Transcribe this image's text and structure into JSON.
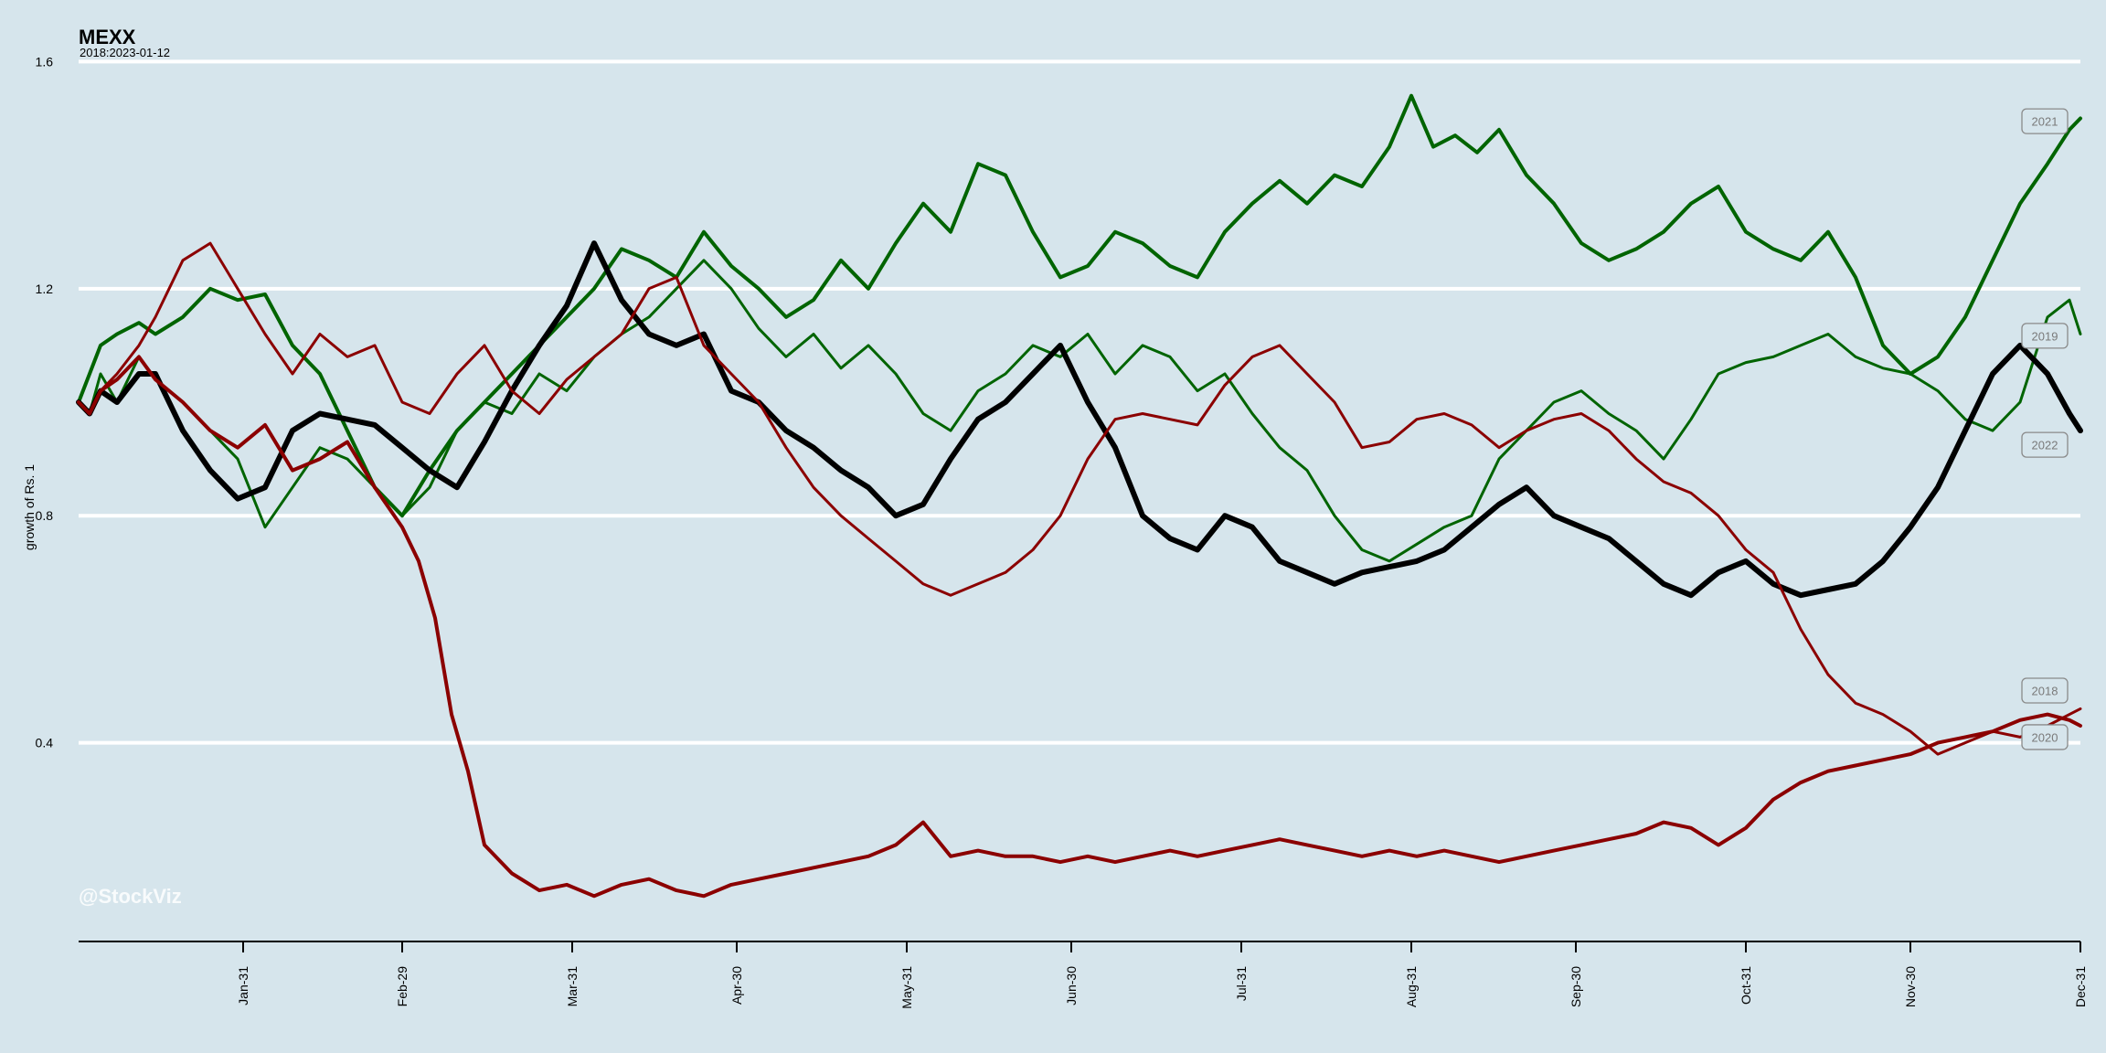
{
  "chart_data": {
    "type": "line",
    "title": "MEXX",
    "subtitle": "2018:2023-01-12",
    "xlabel": "",
    "ylabel": "growth of Rs. 1",
    "watermark": "@StockViz",
    "x_range_day_of_year": [
      1,
      366
    ],
    "ylim": [
      0.05,
      1.62
    ],
    "y_ticks": [
      0.4,
      0.8,
      1.2,
      1.6
    ],
    "y_tick_labels": [
      "0.4",
      "0.8",
      "1.2",
      "1.6"
    ],
    "x_ticks": [
      {
        "day": 31,
        "label": "Jan-31"
      },
      {
        "day": 60,
        "label": "Feb-29"
      },
      {
        "day": 91,
        "label": "Mar-31"
      },
      {
        "day": 121,
        "label": "Apr-30"
      },
      {
        "day": 152,
        "label": "May-31"
      },
      {
        "day": 182,
        "label": "Jun-30"
      },
      {
        "day": 213,
        "label": "Jul-31"
      },
      {
        "day": 244,
        "label": "Aug-31"
      },
      {
        "day": 274,
        "label": "Sep-30"
      },
      {
        "day": 305,
        "label": "Oct-31"
      },
      {
        "day": 335,
        "label": "Nov-30"
      },
      {
        "day": 366,
        "label": "Dec-31"
      }
    ],
    "grid": "horizontal",
    "legend": "end-of-line labels",
    "series": [
      {
        "name": "2021",
        "color": "#006400",
        "width": 4,
        "x": [
          1,
          3,
          5,
          8,
          12,
          15,
          20,
          25,
          30,
          35,
          40,
          45,
          50,
          55,
          60,
          65,
          70,
          75,
          80,
          85,
          90,
          95,
          100,
          105,
          110,
          115,
          120,
          125,
          130,
          135,
          140,
          145,
          150,
          155,
          160,
          165,
          170,
          175,
          180,
          185,
          190,
          195,
          200,
          205,
          210,
          215,
          220,
          225,
          230,
          235,
          240,
          244,
          248,
          252,
          256,
          260,
          265,
          270,
          275,
          280,
          285,
          290,
          295,
          300,
          305,
          310,
          315,
          320,
          325,
          330,
          335,
          340,
          345,
          350,
          355,
          360,
          364,
          366
        ],
        "y": [
          1.0,
          1.05,
          1.1,
          1.12,
          1.14,
          1.12,
          1.15,
          1.2,
          1.18,
          1.19,
          1.1,
          1.05,
          0.95,
          0.85,
          0.8,
          0.88,
          0.95,
          1.0,
          1.05,
          1.1,
          1.15,
          1.2,
          1.27,
          1.25,
          1.22,
          1.3,
          1.24,
          1.2,
          1.15,
          1.18,
          1.25,
          1.2,
          1.28,
          1.35,
          1.3,
          1.42,
          1.4,
          1.3,
          1.22,
          1.24,
          1.3,
          1.28,
          1.24,
          1.22,
          1.3,
          1.35,
          1.39,
          1.35,
          1.4,
          1.38,
          1.45,
          1.54,
          1.45,
          1.47,
          1.44,
          1.48,
          1.4,
          1.35,
          1.28,
          1.25,
          1.27,
          1.3,
          1.35,
          1.38,
          1.3,
          1.27,
          1.25,
          1.3,
          1.22,
          1.1,
          1.05,
          1.08,
          1.15,
          1.25,
          1.35,
          1.42,
          1.48,
          1.5
        ]
      },
      {
        "name": "2019",
        "color": "#006400",
        "width": 3,
        "x": [
          1,
          3,
          5,
          8,
          12,
          15,
          20,
          25,
          30,
          35,
          40,
          45,
          50,
          55,
          60,
          65,
          70,
          75,
          80,
          85,
          90,
          95,
          100,
          105,
          110,
          115,
          120,
          125,
          130,
          135,
          140,
          145,
          150,
          155,
          160,
          165,
          170,
          175,
          180,
          185,
          190,
          195,
          200,
          205,
          210,
          215,
          220,
          225,
          230,
          235,
          240,
          245,
          250,
          255,
          260,
          265,
          270,
          275,
          280,
          285,
          290,
          295,
          300,
          305,
          310,
          315,
          320,
          325,
          330,
          335,
          340,
          345,
          350,
          355,
          360,
          364,
          366
        ],
        "y": [
          1.0,
          0.98,
          1.05,
          1.0,
          1.08,
          1.04,
          1.0,
          0.95,
          0.9,
          0.78,
          0.85,
          0.92,
          0.9,
          0.85,
          0.8,
          0.85,
          0.95,
          1.0,
          0.98,
          1.05,
          1.02,
          1.08,
          1.12,
          1.15,
          1.2,
          1.25,
          1.2,
          1.13,
          1.08,
          1.12,
          1.06,
          1.1,
          1.05,
          0.98,
          0.95,
          1.02,
          1.05,
          1.1,
          1.08,
          1.12,
          1.05,
          1.1,
          1.08,
          1.02,
          1.05,
          0.98,
          0.92,
          0.88,
          0.8,
          0.74,
          0.72,
          0.75,
          0.78,
          0.8,
          0.9,
          0.95,
          1.0,
          1.02,
          0.98,
          0.95,
          0.9,
          0.97,
          1.05,
          1.07,
          1.08,
          1.1,
          1.12,
          1.08,
          1.06,
          1.05,
          1.02,
          0.97,
          0.95,
          1.0,
          1.15,
          1.18,
          1.12
        ]
      },
      {
        "name": "2022",
        "color": "#000000",
        "width": 6,
        "x": [
          1,
          3,
          5,
          8,
          12,
          15,
          20,
          25,
          30,
          35,
          40,
          45,
          50,
          55,
          60,
          65,
          70,
          75,
          80,
          85,
          90,
          95,
          100,
          105,
          110,
          115,
          120,
          125,
          130,
          135,
          140,
          145,
          150,
          155,
          160,
          165,
          170,
          175,
          180,
          185,
          190,
          195,
          200,
          205,
          210,
          215,
          220,
          225,
          230,
          235,
          240,
          245,
          250,
          255,
          260,
          265,
          270,
          275,
          280,
          285,
          290,
          295,
          300,
          305,
          310,
          315,
          320,
          325,
          330,
          335,
          340,
          345,
          350,
          355,
          360,
          364,
          366
        ],
        "y": [
          1.0,
          0.98,
          1.02,
          1.0,
          1.05,
          1.05,
          0.95,
          0.88,
          0.83,
          0.85,
          0.95,
          0.98,
          0.97,
          0.96,
          0.92,
          0.88,
          0.85,
          0.93,
          1.02,
          1.1,
          1.17,
          1.28,
          1.18,
          1.12,
          1.1,
          1.12,
          1.02,
          1.0,
          0.95,
          0.92,
          0.88,
          0.85,
          0.8,
          0.82,
          0.9,
          0.97,
          1.0,
          1.05,
          1.1,
          1.0,
          0.92,
          0.8,
          0.76,
          0.74,
          0.8,
          0.78,
          0.72,
          0.7,
          0.68,
          0.7,
          0.71,
          0.72,
          0.74,
          0.78,
          0.82,
          0.85,
          0.8,
          0.78,
          0.76,
          0.72,
          0.68,
          0.66,
          0.7,
          0.72,
          0.68,
          0.66,
          0.67,
          0.68,
          0.72,
          0.78,
          0.85,
          0.95,
          1.05,
          1.1,
          1.05,
          0.98,
          0.95
        ]
      },
      {
        "name": "2018",
        "color": "#8b0000",
        "width": 3,
        "x": [
          1,
          3,
          5,
          8,
          12,
          15,
          20,
          25,
          30,
          35,
          40,
          45,
          50,
          55,
          60,
          65,
          70,
          75,
          80,
          85,
          90,
          95,
          100,
          105,
          110,
          115,
          120,
          125,
          130,
          135,
          140,
          145,
          150,
          155,
          160,
          165,
          170,
          175,
          180,
          185,
          190,
          195,
          200,
          205,
          210,
          215,
          220,
          225,
          230,
          235,
          240,
          245,
          250,
          255,
          260,
          265,
          270,
          275,
          280,
          285,
          290,
          295,
          300,
          305,
          310,
          315,
          320,
          325,
          330,
          335,
          340,
          345,
          350,
          355,
          360,
          364,
          366
        ],
        "y": [
          1.0,
          0.98,
          1.02,
          1.05,
          1.1,
          1.15,
          1.25,
          1.28,
          1.2,
          1.12,
          1.05,
          1.12,
          1.08,
          1.1,
          1.0,
          0.98,
          1.05,
          1.1,
          1.02,
          0.98,
          1.04,
          1.08,
          1.12,
          1.2,
          1.22,
          1.1,
          1.05,
          1.0,
          0.92,
          0.85,
          0.8,
          0.76,
          0.72,
          0.68,
          0.66,
          0.68,
          0.7,
          0.74,
          0.8,
          0.9,
          0.97,
          0.98,
          0.97,
          0.96,
          1.03,
          1.08,
          1.1,
          1.05,
          1.0,
          0.92,
          0.93,
          0.97,
          0.98,
          0.96,
          0.92,
          0.95,
          0.97,
          0.98,
          0.95,
          0.9,
          0.86,
          0.84,
          0.8,
          0.74,
          0.7,
          0.6,
          0.52,
          0.47,
          0.45,
          0.42,
          0.38,
          0.4,
          0.42,
          0.41,
          0.43,
          0.45,
          0.46
        ]
      },
      {
        "name": "2020",
        "color": "#8b0000",
        "width": 4,
        "x": [
          1,
          3,
          5,
          8,
          12,
          15,
          20,
          25,
          30,
          35,
          40,
          45,
          50,
          55,
          60,
          63,
          66,
          69,
          72,
          75,
          80,
          85,
          90,
          95,
          100,
          105,
          110,
          115,
          120,
          125,
          130,
          135,
          140,
          145,
          150,
          155,
          160,
          165,
          170,
          175,
          180,
          185,
          190,
          195,
          200,
          205,
          210,
          215,
          220,
          225,
          230,
          235,
          240,
          245,
          250,
          255,
          260,
          265,
          270,
          275,
          280,
          285,
          290,
          295,
          300,
          305,
          310,
          315,
          320,
          325,
          330,
          335,
          340,
          345,
          350,
          355,
          360,
          364,
          366
        ],
        "y": [
          1.0,
          0.98,
          1.02,
          1.04,
          1.08,
          1.04,
          1.0,
          0.95,
          0.92,
          0.96,
          0.88,
          0.9,
          0.93,
          0.85,
          0.78,
          0.72,
          0.62,
          0.45,
          0.35,
          0.22,
          0.17,
          0.14,
          0.15,
          0.13,
          0.15,
          0.16,
          0.14,
          0.13,
          0.15,
          0.16,
          0.17,
          0.18,
          0.19,
          0.2,
          0.22,
          0.26,
          0.2,
          0.21,
          0.2,
          0.2,
          0.19,
          0.2,
          0.19,
          0.2,
          0.21,
          0.2,
          0.21,
          0.22,
          0.23,
          0.22,
          0.21,
          0.2,
          0.21,
          0.2,
          0.21,
          0.2,
          0.19,
          0.2,
          0.21,
          0.22,
          0.23,
          0.24,
          0.26,
          0.25,
          0.22,
          0.25,
          0.3,
          0.33,
          0.35,
          0.36,
          0.37,
          0.38,
          0.4,
          0.41,
          0.42,
          0.44,
          0.45,
          0.44,
          0.43
        ]
      }
    ],
    "end_labels": [
      {
        "series": "2021",
        "y": 1.495
      },
      {
        "series": "2019",
        "y": 1.117
      },
      {
        "series": "2022",
        "y": 0.925
      },
      {
        "series": "2018",
        "y": 0.492
      },
      {
        "series": "2020",
        "y": 0.41
      }
    ]
  },
  "colors": {
    "background": "#d6e5ec",
    "grid": "#ffffff",
    "axis": "#000000",
    "gain": "#006400",
    "loss": "#8b0000",
    "current": "#000000"
  }
}
